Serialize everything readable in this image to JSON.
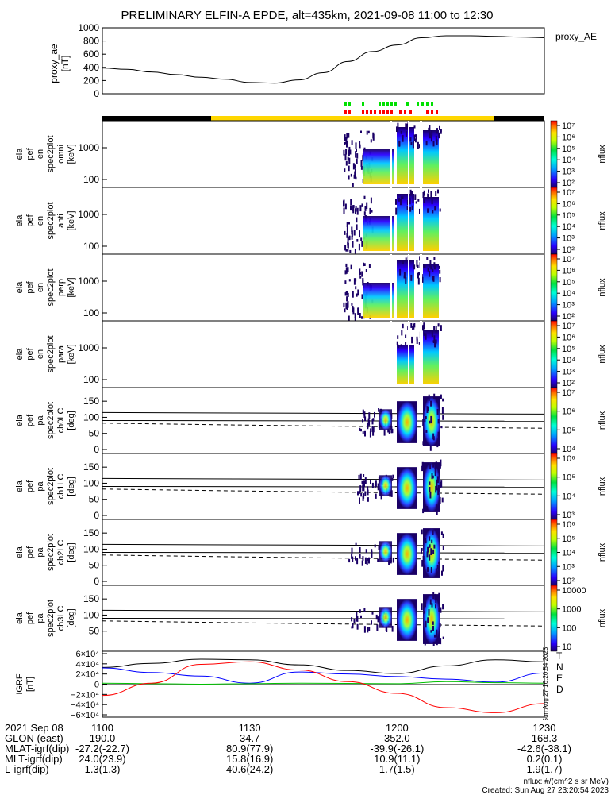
{
  "title": "PRELIMINARY ELFIN-A EPDE, alt=435km, 2021-09-08 11:00 to 12:30",
  "ae_panel": {
    "ylabel": [
      "proxy_ae",
      "[nT]"
    ],
    "legend": "proxy_AE",
    "yticks": [
      "1000",
      "800",
      "600",
      "400",
      "200",
      "0"
    ]
  },
  "spec_panels": [
    {
      "ylabel": [
        "ela",
        "pef",
        "en",
        "spec2plot",
        "omni",
        "[keV]"
      ],
      "yticks": [
        "1000",
        "100"
      ],
      "cbar_ticks": [
        "10⁷",
        "10⁶",
        "10⁵",
        "10⁴",
        "10³",
        "10²"
      ],
      "cbar_label": "nflux"
    },
    {
      "ylabel": [
        "ela",
        "pef",
        "en",
        "spec2plot",
        "anti",
        "[keV]"
      ],
      "yticks": [
        "1000",
        "100"
      ],
      "cbar_ticks": [
        "10⁷",
        "10⁶",
        "10⁵",
        "10⁴",
        "10³",
        "10²"
      ],
      "cbar_label": "nflux"
    },
    {
      "ylabel": [
        "ela",
        "pef",
        "en",
        "spec2plot",
        "perp",
        "[keV]"
      ],
      "yticks": [
        "1000",
        "100"
      ],
      "cbar_ticks": [
        "10⁷",
        "10⁶",
        "10⁵",
        "10⁴",
        "10³",
        "10²"
      ],
      "cbar_label": "nflux"
    },
    {
      "ylabel": [
        "ela",
        "pef",
        "en",
        "spec2plot",
        "para",
        "[keV]"
      ],
      "yticks": [
        "1000",
        "100"
      ],
      "cbar_ticks": [
        "10⁷",
        "10⁶",
        "10⁵",
        "10⁴",
        "10³",
        "10²"
      ],
      "cbar_label": "nflux"
    }
  ],
  "pa_panels": [
    {
      "ylabel": [
        "ela",
        "pef",
        "pa",
        "spec2plot",
        "ch0LC",
        "[deg]"
      ],
      "yticks": [
        "150",
        "100",
        "50",
        "0"
      ],
      "cbar_ticks": [
        "10⁷",
        "10⁶",
        "10⁵",
        "10⁴"
      ],
      "cbar_label": "nflux"
    },
    {
      "ylabel": [
        "ela",
        "pef",
        "pa",
        "spec2plot",
        "ch1LC",
        "[deg]"
      ],
      "yticks": [
        "150",
        "100",
        "50",
        "0"
      ],
      "cbar_ticks": [
        "10⁶",
        "10⁵",
        "10⁴",
        "10³"
      ],
      "cbar_label": "nflux"
    },
    {
      "ylabel": [
        "ela",
        "pef",
        "pa",
        "spec2plot",
        "ch2LC",
        "[deg]"
      ],
      "yticks": [
        "150",
        "100",
        "50",
        "0"
      ],
      "cbar_ticks": [
        "10⁶",
        "10⁵",
        "10⁴",
        "10³",
        "10²"
      ],
      "cbar_label": "nflux"
    },
    {
      "ylabel": [
        "ela",
        "pef",
        "pa",
        "spec2plot",
        "ch3LC",
        "[deg]"
      ],
      "yticks": [
        "150",
        "100",
        "50"
      ],
      "cbar_ticks": [
        "10000",
        "1000",
        "100",
        "10"
      ],
      "cbar_label": "nflux"
    }
  ],
  "igrf_panel": {
    "ylabel": [
      "IGRF",
      "[nT]"
    ],
    "yticks": [
      "6×10⁴",
      "4×10⁴",
      "2×10⁴",
      "0",
      "−2×10⁴",
      "−4×10⁴",
      "−6×10⁴"
    ],
    "legend": [
      {
        "label": "T",
        "color": "#000000"
      },
      {
        "label": "N",
        "color": "#0000ff"
      },
      {
        "label": "E",
        "color": "#00c000"
      },
      {
        "label": "D",
        "color": "#ff0000"
      }
    ],
    "side_text": "Sun Aug 27 16:20:54 2023"
  },
  "footer": {
    "rows": [
      {
        "label": "2021 Sep 08",
        "values": [
          "1100",
          "1130",
          "1200",
          "1230"
        ]
      },
      {
        "label": "GLON (east)",
        "values": [
          "190.0",
          "34.7",
          "352.0",
          "168.3"
        ]
      },
      {
        "label": "MLAT-igrf(dip)",
        "values": [
          "-27.2(-22.7)",
          "80.9(77.9)",
          "-39.9(-26.1)",
          "-42.6(-38.1)"
        ]
      },
      {
        "label": "MLT-igrf(dip)",
        "values": [
          "24.0(23.9)",
          "15.8(16.9)",
          "10.9(11.1)",
          "0.2(0.1)"
        ]
      },
      {
        "label": "L-igrf(dip)",
        "values": [
          "1.3(1.3)",
          "40.6(24.2)",
          "1.7(1.5)",
          "1.9(1.7)"
        ]
      }
    ],
    "units": "nflux: #/(cm^2 s sr MeV)",
    "created": "Created: Sun Aug 27 23:20:54 2023"
  },
  "colors": {
    "sci_zone": "#ffd700",
    "no_data": "#000000",
    "green_tick": "#00e000",
    "red_tick": "#ff0000"
  },
  "chart_data": {
    "type": "line",
    "x_ticks": [
      "1100",
      "1130",
      "1200",
      "1230"
    ],
    "proxy_ae": {
      "time": [
        "1100",
        "1105",
        "1110",
        "1115",
        "1120",
        "1125",
        "1130",
        "1135",
        "1140",
        "1145",
        "1150",
        "1155",
        "1200",
        "1205",
        "1210",
        "1215",
        "1220",
        "1225",
        "1230"
      ],
      "values": [
        390,
        370,
        330,
        290,
        250,
        220,
        170,
        160,
        210,
        320,
        490,
        640,
        740,
        850,
        880,
        880,
        870,
        860,
        850
      ],
      "ylim": [
        0,
        1000
      ]
    },
    "igrf": {
      "time": [
        "1100",
        "1110",
        "1120",
        "1130",
        "1140",
        "1150",
        "1200",
        "1210",
        "1220",
        "1230"
      ],
      "T": [
        33000,
        41000,
        49000,
        48000,
        38000,
        27000,
        21000,
        36000,
        48000,
        44000
      ],
      "N": [
        32000,
        23000,
        16000,
        2000,
        24000,
        20000,
        15000,
        10000,
        4000,
        22000
      ],
      "E": [
        2000,
        1000,
        0,
        1000,
        2000,
        1500,
        1000,
        5000,
        3000,
        2000
      ],
      "D": [
        -22000,
        2000,
        39000,
        44000,
        28000,
        5000,
        -18000,
        -46000,
        -56000,
        -38000
      ],
      "ylim": [
        -60000,
        60000
      ]
    }
  }
}
